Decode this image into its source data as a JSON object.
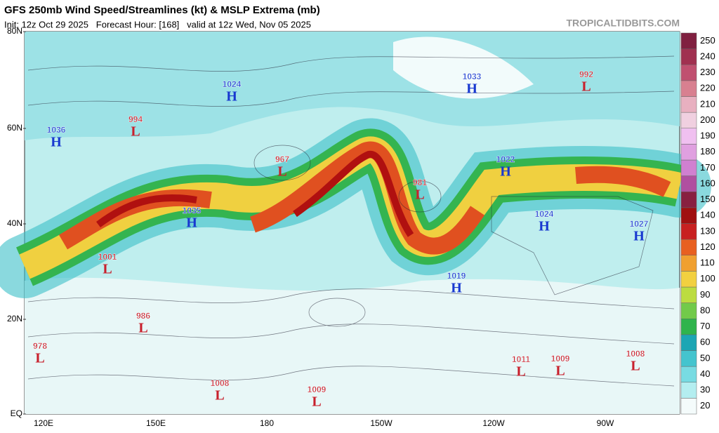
{
  "header": {
    "title": "GFS 250mb Wind Speed/Streamlines (kt) & MSLP Extrema (mb)",
    "subtitle": "Init: 12z Oct 29 2025   Forecast Hour: [168]   valid at 12z Wed, Nov 05 2025",
    "watermark": "TROPICALTIDBITS.COM"
  },
  "lat_labels": [
    "80N",
    "60N",
    "40N",
    "20N",
    "EQ"
  ],
  "lon_labels": [
    "120E",
    "150E",
    "180",
    "150W",
    "120W",
    "90W"
  ],
  "centers": [
    {
      "value": 1036,
      "letter": "H",
      "color": "#1838d0"
    },
    {
      "value": 994,
      "letter": "L",
      "color": "#c8202c"
    },
    {
      "value": 1024,
      "letter": "H",
      "color": "#1838d0"
    },
    {
      "value": 1033,
      "letter": "H",
      "color": "#1838d0"
    },
    {
      "value": 992,
      "letter": "L",
      "color": "#c8202c"
    },
    {
      "value": 967,
      "letter": "L",
      "color": "#c8202c"
    },
    {
      "value": 981,
      "letter": "L",
      "color": "#c8202c"
    },
    {
      "value": 1022,
      "letter": "H",
      "color": "#1838d0"
    },
    {
      "value": 1035,
      "letter": "H",
      "color": "#1838d0"
    },
    {
      "value": 1024,
      "letter": "H",
      "color": "#1838d0"
    },
    {
      "value": 1027,
      "letter": "H",
      "color": "#1838d0"
    },
    {
      "value": 1001,
      "letter": "L",
      "color": "#c8202c"
    },
    {
      "value": 1019,
      "letter": "H",
      "color": "#1838d0"
    },
    {
      "value": 986,
      "letter": "L",
      "color": "#c8202c"
    },
    {
      "value": 978,
      "letter": "L",
      "color": "#c8202c"
    },
    {
      "value": 1011,
      "letter": "L",
      "color": "#c8202c"
    },
    {
      "value": 1009,
      "letter": "L",
      "color": "#c8202c"
    },
    {
      "value": 1008,
      "letter": "L",
      "color": "#c8202c"
    },
    {
      "value": 1008,
      "letter": "L",
      "color": "#c8202c"
    },
    {
      "value": 1009,
      "letter": "L",
      "color": "#c8202c"
    }
  ],
  "colorbar": {
    "ticks": [
      20,
      30,
      40,
      50,
      60,
      70,
      80,
      90,
      100,
      110,
      120,
      130,
      140,
      150,
      160,
      170,
      180,
      190,
      200,
      210,
      220,
      230,
      240,
      250
    ],
    "colors": [
      "#f4fbfb",
      "#b4eef0",
      "#78dbe2",
      "#44c4ce",
      "#1ca6b4",
      "#2fb44c",
      "#72ca4a",
      "#bcdc40",
      "#f2d040",
      "#f0a030",
      "#e86020",
      "#c82020",
      "#a01010",
      "#882040",
      "#b050a0",
      "#d080d0",
      "#e0a0e0",
      "#f0c0f0",
      "#f0d0e0",
      "#e8b0c0",
      "#d88090",
      "#c05070",
      "#a03050",
      "#802040"
    ]
  }
}
